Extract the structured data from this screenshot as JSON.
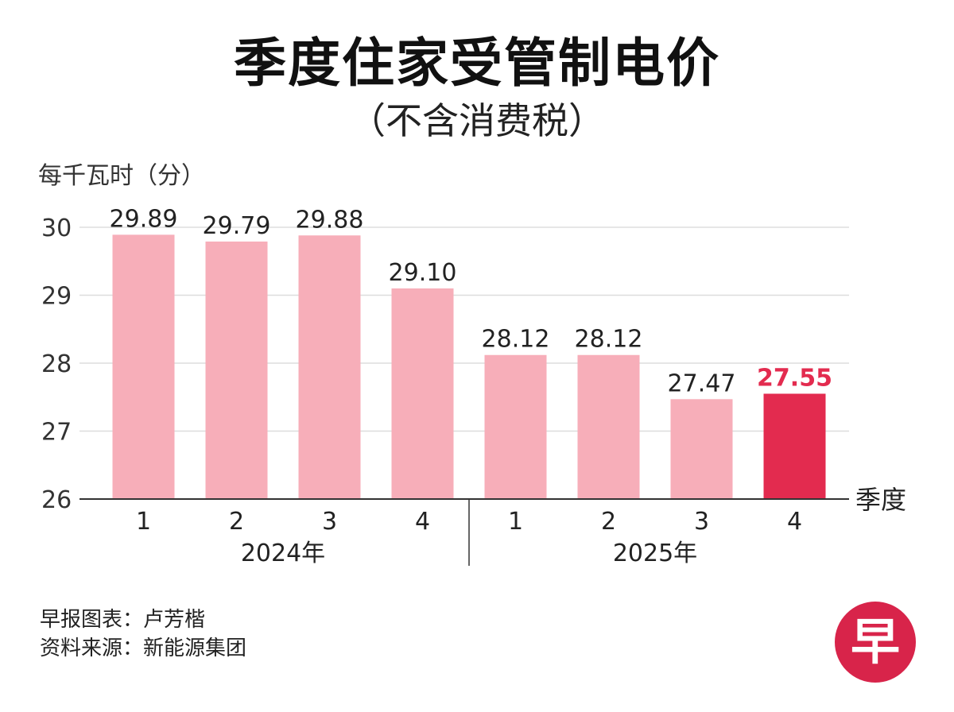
{
  "chart_data": {
    "type": "bar",
    "title": "季度住家受管制电价",
    "subtitle": "（不含消费税）",
    "ylabel": "每千瓦时（分）",
    "xlabel": "季度",
    "categories": [
      "1",
      "2",
      "3",
      "4",
      "1",
      "2",
      "3",
      "4"
    ],
    "groups": [
      {
        "label": "2024年",
        "count": 4
      },
      {
        "label": "2025年",
        "count": 4
      }
    ],
    "values": [
      29.89,
      29.79,
      29.88,
      29.1,
      28.12,
      28.12,
      27.47,
      27.55
    ],
    "value_labels": [
      "29.89",
      "29.79",
      "29.88",
      "29.10",
      "28.12",
      "28.12",
      "27.47",
      "27.55"
    ],
    "highlight_index": 7,
    "ylim": [
      26,
      30
    ],
    "yticks": [
      26,
      27,
      28,
      29,
      30
    ],
    "grid": true,
    "colors": {
      "bar": "#f7aeb9",
      "highlight": "#e32b4f",
      "highlight_label": "#e32b4f",
      "grid": "#dddddd",
      "axis": "#333333"
    }
  },
  "footer": {
    "line1": "早报图表：卢芳楷",
    "line2": "资料来源：新能源集团"
  },
  "logo": {
    "text": "早",
    "icon": "zaobao-logo-icon",
    "color": "#d8244a"
  }
}
